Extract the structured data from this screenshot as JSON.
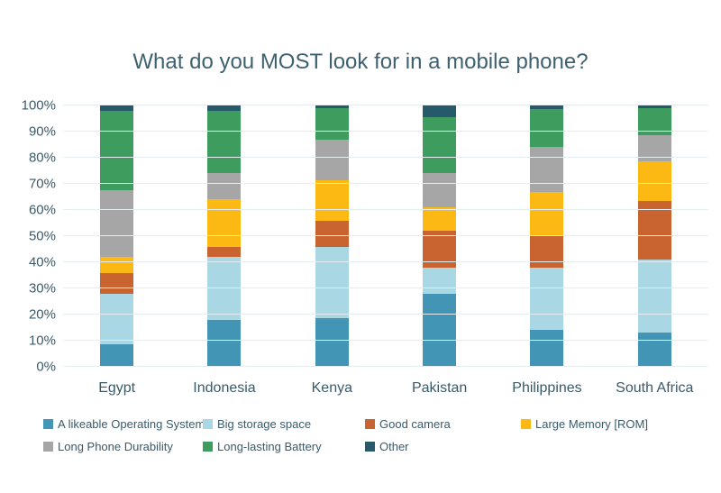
{
  "chart": {
    "title": "What do you MOST look for in a mobile phone?"
  },
  "chart_data": {
    "type": "bar",
    "stacked": true,
    "percent_stacked": true,
    "title": "What do you MOST look for in a mobile phone?",
    "xlabel": "",
    "ylabel": "",
    "ylim": [
      0,
      100
    ],
    "grid": true,
    "legend_position": "bottom",
    "ytick_labels": [
      "0%",
      "10%",
      "20%",
      "30%",
      "40%",
      "50%",
      "60%",
      "70%",
      "80%",
      "90%",
      "100%"
    ],
    "categories": [
      "Egypt",
      "Indonesia",
      "Kenya",
      "Pakistan",
      "Philippines",
      "South Africa"
    ],
    "series": [
      {
        "name": "A likeable Operating System",
        "color": "#4295b5",
        "values": [
          8.5,
          18,
          18.5,
          28,
          14,
          13
        ]
      },
      {
        "name": "Big storage space",
        "color": "#a9d7e3",
        "values": [
          19.5,
          24,
          27.5,
          10,
          24,
          28
        ]
      },
      {
        "name": "Good camera",
        "color": "#c9632f",
        "values": [
          8,
          4,
          10,
          14,
          12,
          22.5
        ]
      },
      {
        "name": "Large Memory [ROM]",
        "color": "#fcb813",
        "values": [
          6,
          18,
          15.5,
          9,
          17,
          15
        ]
      },
      {
        "name": "Long Phone Durability",
        "color": "#a6a6a6",
        "values": [
          25.5,
          10,
          15.5,
          13,
          17,
          10
        ]
      },
      {
        "name": "Long-lasting Battery",
        "color": "#3f9c5f",
        "values": [
          30.5,
          24,
          12,
          21.5,
          14.5,
          10.5
        ]
      },
      {
        "name": "Other",
        "color": "#265a6b",
        "values": [
          2,
          2,
          1,
          4.5,
          1.5,
          1
        ]
      }
    ],
    "legend_rows": [
      [
        0,
        1,
        2,
        3
      ],
      [
        4,
        5,
        6
      ]
    ]
  }
}
